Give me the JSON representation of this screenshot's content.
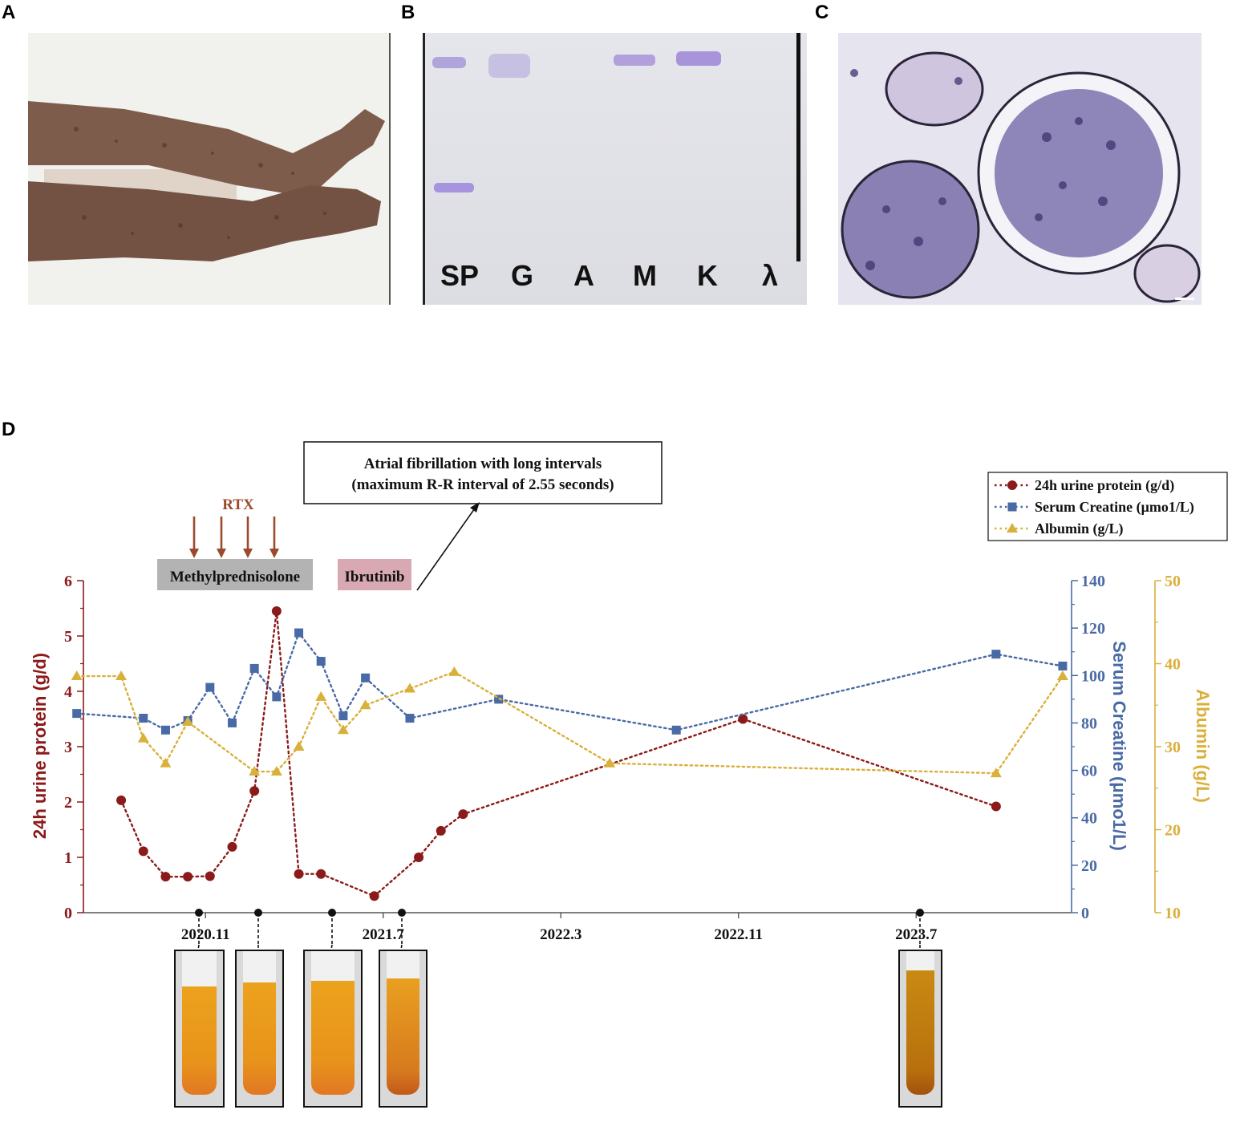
{
  "panels": {
    "a": "A",
    "b": "B",
    "c": "C",
    "d": "D"
  },
  "gel_lanes": [
    "SP",
    "G",
    "A",
    "M",
    "K",
    "λ"
  ],
  "colors": {
    "protein": "#8b1a1a",
    "creatine": "#4a6aa5",
    "albumin": "#d9b03a",
    "rtx": "#9c4a2c",
    "methyl_box": "#b3b3b3",
    "ibrutinib_box": "#d8a9b2"
  },
  "annotations": {
    "rtx": "RTX",
    "methylprednisolone": "Methylprednisolone",
    "ibrutinib": "Ibrutinib",
    "afib_line1": "Atrial fibrillation with long intervals",
    "afib_line2": "(maximum R-R interval of 2.55 seconds)"
  },
  "chart_data": {
    "type": "line",
    "x_ticks": [
      "2020.11",
      "2021.7",
      "2022.3",
      "2022.11",
      "2023.7"
    ],
    "x_tick_months": [
      0,
      8,
      16,
      24,
      32
    ],
    "xlim": [
      -5.5,
      39
    ],
    "axes": {
      "left": {
        "label": "24h urine protein (g/d)",
        "ylim": [
          0,
          6
        ],
        "ticks": [
          0,
          1,
          2,
          3,
          4,
          5,
          6
        ]
      },
      "right1": {
        "label": "Serum Creatine (μmo1/L)",
        "ylim": [
          0,
          140
        ],
        "ticks": [
          0,
          20,
          40,
          60,
          80,
          100,
          120,
          140
        ]
      },
      "right2": {
        "label": "Albumin (g/L)",
        "ylim": [
          10,
          50
        ],
        "ticks": [
          10,
          20,
          30,
          40,
          50
        ]
      }
    },
    "legend_position": "top-right",
    "series": [
      {
        "name": "24h urine protein (g/d)",
        "axis": "left",
        "marker": "circle",
        "x": [
          -3.8,
          -2.8,
          -1.8,
          -0.8,
          0.2,
          1.2,
          2.2,
          3.2,
          4.2,
          5.2,
          7.6,
          9.6,
          10.6,
          11.6,
          24.2,
          35.6
        ],
        "values": [
          2.03,
          1.11,
          0.65,
          0.65,
          0.66,
          1.19,
          2.2,
          5.45,
          0.7,
          0.7,
          0.3,
          1.0,
          1.48,
          1.78,
          3.5,
          1.92
        ]
      },
      {
        "name": "Serum Creatine (μmo1/L)",
        "axis": "right1",
        "marker": "square",
        "x": [
          -5.8,
          -2.8,
          -1.8,
          -0.8,
          0.2,
          1.2,
          2.2,
          3.2,
          4.2,
          5.2,
          6.2,
          7.2,
          9.2,
          13.2,
          21.2,
          35.6,
          38.6
        ],
        "values": [
          84,
          82,
          77,
          81,
          95,
          80,
          103,
          91,
          118,
          106,
          83,
          99,
          82,
          90,
          77,
          109,
          104
        ]
      },
      {
        "name": "Albumin (g/L)",
        "axis": "right2",
        "marker": "triangle",
        "x": [
          -5.8,
          -3.8,
          -2.8,
          -1.8,
          -0.8,
          2.2,
          3.2,
          4.2,
          5.2,
          6.2,
          7.2,
          9.2,
          11.2,
          18.2,
          35.6,
          38.6
        ],
        "values": [
          38.5,
          38.5,
          31,
          28,
          33,
          27,
          27,
          30,
          36,
          32,
          35,
          37,
          39,
          28,
          26.8,
          38.5
        ]
      }
    ]
  }
}
